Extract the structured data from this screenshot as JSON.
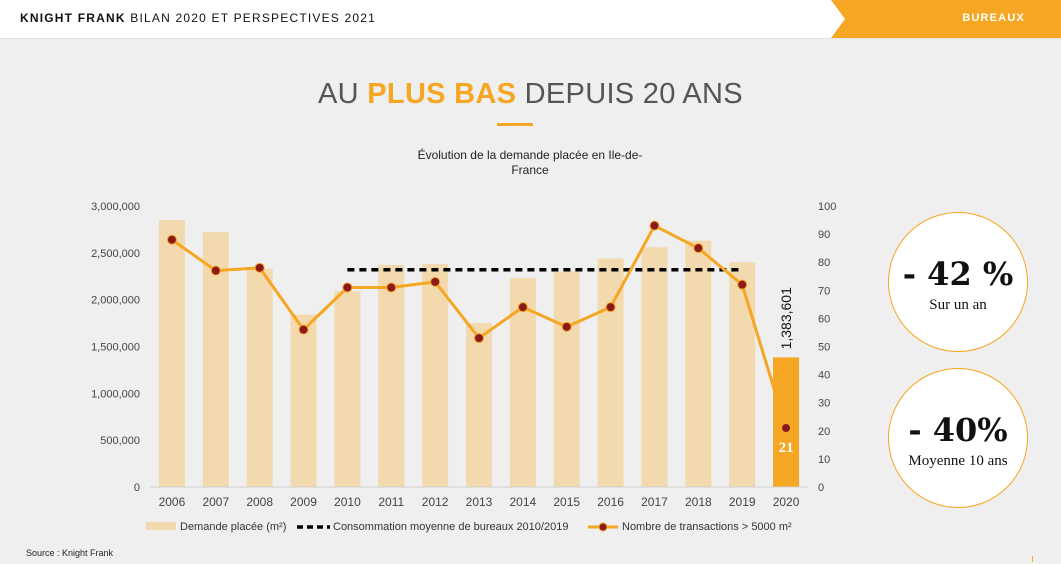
{
  "header": {
    "brand_name": "KNIGHT FRANK",
    "brand_subtitle": "BILAN 2020 ET PERSPECTIVES 2021",
    "section": "BUREAUX"
  },
  "headline": {
    "part1": "AU ",
    "highlight": "PLUS BAS",
    "part2": " DEPUIS 20 ANS"
  },
  "colors": {
    "accent": "#f5a623",
    "bar": "#f3d9ae",
    "dot": "#8b1a1a",
    "dashed": "#000000"
  },
  "kpis": [
    {
      "value": "- 42 %",
      "label": "Sur un an"
    },
    {
      "value": "- 40%",
      "label": "Moyenne 10 ans"
    }
  ],
  "source": "Source : Knight Frank",
  "chart_data": {
    "type": "bar",
    "title": "Évolution de la demande placée en Ile-de-France",
    "categories": [
      "2006",
      "2007",
      "2008",
      "2009",
      "2010",
      "2011",
      "2012",
      "2013",
      "2014",
      "2015",
      "2016",
      "2017",
      "2018",
      "2019",
      "2020"
    ],
    "series": [
      {
        "name": "Demande placée (m²)",
        "type": "bar",
        "axis": "left",
        "values": [
          2850000,
          2720000,
          2330000,
          1840000,
          2090000,
          2370000,
          2380000,
          1750000,
          2230000,
          2300000,
          2440000,
          2560000,
          2630000,
          2400000,
          1383601
        ]
      },
      {
        "name": "Consommation moyenne de bureaux 2010/2019",
        "type": "dashed-line",
        "axis": "left",
        "from": "2010",
        "to": "2019",
        "value": 2320000
      },
      {
        "name": "Nombre de transactions > 5000 m²",
        "type": "line",
        "axis": "right",
        "values": [
          88,
          77,
          78,
          56,
          71,
          71,
          73,
          53,
          64,
          57,
          64,
          93,
          85,
          72,
          21
        ]
      }
    ],
    "highlight": {
      "category": "2020",
      "bar_label": "1,383,601",
      "line_label": "21"
    },
    "ylim_left": [
      0,
      3000000
    ],
    "yticks_left": [
      "0",
      "500,000",
      "1,000,000",
      "1,500,000",
      "2,000,000",
      "2,500,000",
      "3,000,000"
    ],
    "ylim_right": [
      0,
      100
    ],
    "yticks_right": [
      "0",
      "10",
      "20",
      "30",
      "40",
      "50",
      "60",
      "70",
      "80",
      "90",
      "100"
    ],
    "legend_position": "bottom"
  }
}
